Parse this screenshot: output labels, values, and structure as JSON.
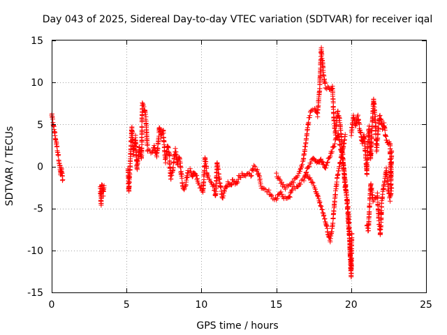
{
  "chart_data": {
    "type": "scatter",
    "title": "Day 043 of 2025, Sidereal Day-to-day VTEC variation (SDTVAR) for receiver iqal",
    "xlabel": "GPS time / hours",
    "ylabel": "SDTVAR / TECUs",
    "xlim": [
      0,
      25
    ],
    "ylim": [
      -15,
      15
    ],
    "xticks": [
      "0",
      "5",
      "10",
      "15",
      "20",
      "25"
    ],
    "yticks": [
      "15",
      "10",
      "5",
      "0",
      "-5",
      "-10",
      "-15"
    ],
    "grid": true,
    "marker": "+",
    "colors": {
      "series": "#ff0000",
      "grid": "#a0a0a0",
      "axes": "#000000"
    },
    "series": [
      {
        "name": "SDTVAR",
        "knots": [
          [
            0.0,
            6.2
          ],
          [
            0.55,
            0.1
          ],
          [
            0.6,
            -1.0
          ],
          [
            0.65,
            -0.3
          ],
          [
            0.75,
            -1.9
          ],
          [
            3.25,
            -2.6
          ],
          [
            3.3,
            -4.6
          ],
          [
            3.35,
            -2.0
          ],
          [
            3.45,
            -3.4
          ],
          [
            3.5,
            -2.2
          ],
          [
            5.1,
            -0.1
          ],
          [
            5.15,
            -3.1
          ],
          [
            5.25,
            0.6
          ],
          [
            5.35,
            4.7
          ],
          [
            5.45,
            1.5
          ],
          [
            5.6,
            3.5
          ],
          [
            5.7,
            -0.3
          ],
          [
            5.85,
            2.3
          ],
          [
            6.0,
            1.0
          ],
          [
            6.05,
            7.4
          ],
          [
            6.2,
            6.9
          ],
          [
            6.3,
            5.5
          ],
          [
            6.35,
            3.6
          ],
          [
            6.4,
            2.0
          ],
          [
            6.55,
            1.8
          ],
          [
            6.7,
            1.6
          ],
          [
            6.85,
            2.3
          ],
          [
            7.0,
            1.2
          ],
          [
            7.1,
            2.5
          ],
          [
            7.2,
            4.8
          ],
          [
            7.3,
            3.6
          ],
          [
            7.45,
            4.2
          ],
          [
            7.6,
            0.6
          ],
          [
            7.75,
            2.5
          ],
          [
            7.85,
            1.6
          ],
          [
            7.95,
            -1.4
          ],
          [
            8.1,
            -0.3
          ],
          [
            8.25,
            2.0
          ],
          [
            8.4,
            0.3
          ],
          [
            8.55,
            1.2
          ],
          [
            8.65,
            -1.0
          ],
          [
            8.8,
            -2.8
          ],
          [
            8.95,
            -2.3
          ],
          [
            9.1,
            -0.5
          ],
          [
            9.25,
            -0.5
          ],
          [
            9.4,
            -1.3
          ],
          [
            9.5,
            -0.6
          ],
          [
            9.65,
            -1.1
          ],
          [
            9.8,
            -2.1
          ],
          [
            10.0,
            -2.6
          ],
          [
            10.1,
            -3.1
          ],
          [
            10.25,
            1.0
          ],
          [
            10.4,
            -1.2
          ],
          [
            10.6,
            -1.8
          ],
          [
            10.8,
            -2.3
          ],
          [
            10.95,
            -3.5
          ],
          [
            11.05,
            0.5
          ],
          [
            11.2,
            -1.5
          ],
          [
            11.4,
            -3.7
          ],
          [
            11.6,
            -2.6
          ],
          [
            11.8,
            -1.9
          ],
          [
            11.95,
            -2.3
          ],
          [
            12.1,
            -1.6
          ],
          [
            12.3,
            -2.1
          ],
          [
            12.5,
            -1.3
          ],
          [
            12.7,
            -1.0
          ],
          [
            12.9,
            -1.1
          ],
          [
            13.1,
            -0.7
          ],
          [
            13.3,
            -1.0
          ],
          [
            13.5,
            -0.1
          ],
          [
            13.7,
            -0.4
          ],
          [
            13.85,
            -1.2
          ],
          [
            14.0,
            -2.4
          ],
          [
            14.2,
            -2.7
          ],
          [
            14.45,
            -2.9
          ],
          [
            14.7,
            -3.6
          ],
          [
            14.95,
            -3.9
          ],
          [
            15.25,
            -3.0
          ],
          [
            15.5,
            -3.6
          ],
          [
            15.8,
            -3.9
          ],
          [
            16.1,
            -2.6
          ],
          [
            16.35,
            -2.5
          ],
          [
            16.6,
            -1.9
          ],
          [
            16.85,
            -1.6
          ],
          [
            17.05,
            -0.4
          ],
          [
            17.2,
            0.2
          ],
          [
            17.35,
            0.6
          ],
          [
            17.5,
            1.0
          ],
          [
            17.65,
            0.6
          ],
          [
            17.8,
            0.3
          ],
          [
            17.95,
            0.9
          ],
          [
            18.1,
            0.4
          ],
          [
            18.25,
            -0.1
          ],
          [
            18.4,
            0.5
          ],
          [
            18.6,
            1.3
          ],
          [
            18.8,
            2.3
          ],
          [
            19.0,
            3.3
          ],
          [
            19.15,
            3.9
          ],
          [
            19.25,
            2.6
          ],
          [
            19.4,
            1.3
          ],
          [
            19.55,
            -1.0
          ],
          [
            19.7,
            -3.6
          ],
          [
            19.8,
            -6.3
          ],
          [
            19.9,
            -8.8
          ],
          [
            19.95,
            -11.3
          ],
          [
            20.0,
            -13.1
          ],
          [
            20.05,
            -8.0
          ]
        ],
        "knots_b": [
          [
            15.0,
            -1.0
          ],
          [
            15.3,
            -1.9
          ],
          [
            15.6,
            -2.6
          ],
          [
            15.9,
            -2.3
          ],
          [
            16.2,
            -1.6
          ],
          [
            16.5,
            -0.9
          ],
          [
            16.8,
            0.6
          ],
          [
            17.0,
            3.3
          ],
          [
            17.15,
            5.4
          ],
          [
            17.35,
            6.8
          ],
          [
            17.55,
            6.8
          ],
          [
            17.75,
            6.1
          ],
          [
            17.9,
            9.4
          ],
          [
            18.0,
            14.0
          ],
          [
            18.15,
            11.0
          ],
          [
            18.3,
            9.4
          ],
          [
            18.5,
            9.3
          ],
          [
            18.65,
            9.0
          ],
          [
            18.75,
            9.4
          ],
          [
            18.85,
            5.5
          ],
          [
            18.95,
            3.9
          ],
          [
            19.1,
            6.6
          ],
          [
            19.2,
            5.9
          ],
          [
            19.35,
            3.4
          ],
          [
            19.5,
            -0.1
          ],
          [
            19.6,
            -2.6
          ],
          [
            19.75,
            -4.1
          ],
          [
            19.85,
            -6.6
          ],
          [
            19.95,
            -10.9
          ],
          [
            20.0,
            -12.1
          ]
        ],
        "knots_c": [
          [
            17.0,
            -0.9
          ],
          [
            17.3,
            -1.7
          ],
          [
            17.6,
            -2.6
          ],
          [
            17.85,
            -4.1
          ],
          [
            18.1,
            -5.4
          ],
          [
            18.3,
            -6.6
          ],
          [
            18.45,
            -7.9
          ],
          [
            18.6,
            -8.8
          ],
          [
            18.75,
            -7.1
          ],
          [
            18.9,
            -4.1
          ],
          [
            19.05,
            -1.6
          ],
          [
            19.2,
            -0.1
          ],
          [
            19.35,
            1.2
          ],
          [
            19.5,
            2.6
          ],
          [
            19.6,
            3.8
          ]
        ],
        "knots_d": [
          [
            20.0,
            3.9
          ],
          [
            20.15,
            6.0
          ],
          [
            20.3,
            4.9
          ],
          [
            20.45,
            5.9
          ],
          [
            20.6,
            4.1
          ],
          [
            20.75,
            2.8
          ],
          [
            20.85,
            3.7
          ],
          [
            21.0,
            0.4
          ],
          [
            21.05,
            -1.0
          ],
          [
            21.1,
            2.4
          ],
          [
            21.2,
            4.8
          ],
          [
            21.3,
            0.8
          ],
          [
            21.4,
            4.8
          ],
          [
            21.5,
            8.1
          ],
          [
            21.6,
            5.8
          ],
          [
            21.7,
            2.0
          ],
          [
            21.8,
            4.2
          ],
          [
            21.9,
            6.1
          ],
          [
            22.0,
            5.4
          ],
          [
            22.1,
            4.5
          ],
          [
            22.2,
            5.0
          ],
          [
            22.3,
            3.6
          ],
          [
            22.4,
            2.9
          ],
          [
            22.5,
            2.6
          ],
          [
            22.6,
            2.8
          ],
          [
            22.65,
            -2.6
          ],
          [
            22.7,
            1.8
          ]
        ],
        "knots_e": [
          [
            21.05,
            -7.0
          ],
          [
            21.15,
            -7.6
          ],
          [
            21.3,
            -2.0
          ],
          [
            21.45,
            -4.0
          ],
          [
            21.6,
            -3.8
          ],
          [
            21.75,
            -3.4
          ],
          [
            21.85,
            -6.5
          ],
          [
            21.95,
            -8.1
          ],
          [
            22.05,
            -4.2
          ],
          [
            22.2,
            -2.0
          ],
          [
            22.35,
            -0.4
          ],
          [
            22.5,
            -3.0
          ],
          [
            22.6,
            -3.9
          ],
          [
            22.7,
            -2.6
          ]
        ]
      }
    ]
  }
}
